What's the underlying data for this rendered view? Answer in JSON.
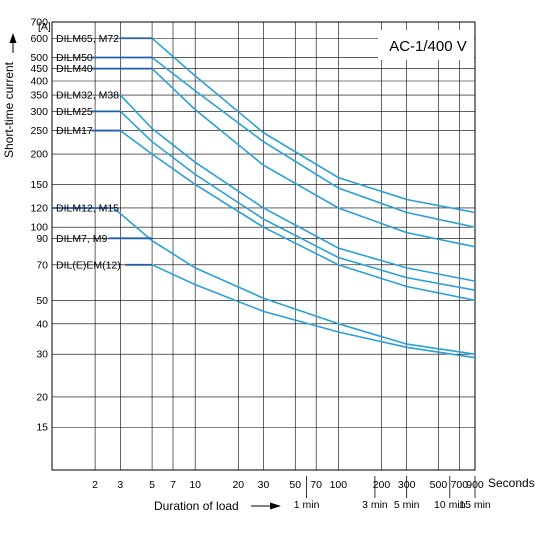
{
  "chart_data": {
    "type": "line",
    "title": "AC-1/400 V",
    "xlabel": "Duration of load",
    "ylabel": "Short-time current",
    "yunit": "[A]",
    "xunit": "Seconds",
    "x_scale": "log",
    "y_scale": "log",
    "xlim": [
      1,
      900
    ],
    "ylim": [
      10,
      700
    ],
    "x_ticks": [
      2,
      3,
      5,
      7,
      10,
      20,
      30,
      50,
      70,
      100,
      200,
      300,
      500,
      700,
      900
    ],
    "x_tick_labels": [
      "2",
      "3",
      "5",
      "7",
      "10",
      "20",
      "30",
      "50",
      "70",
      "100",
      "200",
      "300",
      "500",
      "700",
      "900"
    ],
    "x_minute_ticks": [
      {
        "x": 60,
        "label": "1 min"
      },
      {
        "x": 180,
        "label": "3 min"
      },
      {
        "x": 300,
        "label": "5 min"
      },
      {
        "x": 600,
        "label": "10 min"
      },
      {
        "x": 900,
        "label": "15 min"
      }
    ],
    "y_ticks": [
      15,
      20,
      30,
      40,
      50,
      70,
      90,
      100,
      120,
      150,
      200,
      250,
      300,
      350,
      400,
      450,
      500,
      600,
      700
    ],
    "y_tick_labels": [
      "15",
      "20",
      "30",
      "40",
      "50",
      "70",
      "90",
      "100",
      "120",
      "150",
      "200",
      "250",
      "300",
      "350",
      "400",
      "450",
      "500",
      "600",
      "700"
    ],
    "grid": true,
    "legend": "none",
    "series": [
      {
        "name": "DILM65, M72",
        "plateau_start": 1,
        "points": [
          [
            5,
            600
          ],
          [
            10,
            420
          ],
          [
            30,
            245
          ],
          [
            100,
            160
          ],
          [
            300,
            130
          ],
          [
            900,
            115
          ]
        ]
      },
      {
        "name": "DILM50",
        "plateau_start": 1,
        "points": [
          [
            5,
            500
          ],
          [
            10,
            365
          ],
          [
            30,
            225
          ],
          [
            100,
            145
          ],
          [
            300,
            115
          ],
          [
            900,
            100
          ]
        ]
      },
      {
        "name": "DILM40",
        "plateau_start": 1,
        "points": [
          [
            5,
            450
          ],
          [
            10,
            305
          ],
          [
            30,
            180
          ],
          [
            100,
            120
          ],
          [
            300,
            95
          ],
          [
            900,
            83
          ]
        ]
      },
      {
        "name": "DILM32, M38",
        "plateau_start": 1,
        "points": [
          [
            3,
            350
          ],
          [
            5,
            255
          ],
          [
            10,
            185
          ],
          [
            30,
            120
          ],
          [
            100,
            82
          ],
          [
            300,
            68
          ],
          [
            900,
            60
          ]
        ]
      },
      {
        "name": "DILM25",
        "plateau_start": 1,
        "points": [
          [
            3,
            300
          ],
          [
            5,
            225
          ],
          [
            10,
            165
          ],
          [
            30,
            108
          ],
          [
            100,
            75
          ],
          [
            300,
            62
          ],
          [
            900,
            55
          ]
        ]
      },
      {
        "name": "DILM17",
        "plateau_start": 1,
        "points": [
          [
            3,
            250
          ],
          [
            5,
            200
          ],
          [
            10,
            150
          ],
          [
            30,
            100
          ],
          [
            100,
            70
          ],
          [
            300,
            57
          ],
          [
            900,
            50
          ]
        ]
      },
      {
        "name": "DILM12, M15",
        "plateau_start": 0,
        "points": [
          [
            2.7,
            120
          ],
          [
            5,
            88
          ],
          [
            10,
            68
          ],
          [
            30,
            51
          ],
          [
            100,
            40
          ],
          [
            300,
            33
          ],
          [
            900,
            30
          ]
        ]
      },
      {
        "name": "DILM7, M9",
        "plateau_start": 1,
        "points": [
          [
            5,
            90
          ]
        ]
      },
      {
        "name": "DIL(E)EM(12)",
        "plateau_start": 1,
        "points": [
          [
            5,
            70
          ],
          [
            10,
            58
          ],
          [
            30,
            45
          ],
          [
            100,
            37
          ],
          [
            300,
            32
          ],
          [
            900,
            29
          ]
        ]
      }
    ]
  }
}
